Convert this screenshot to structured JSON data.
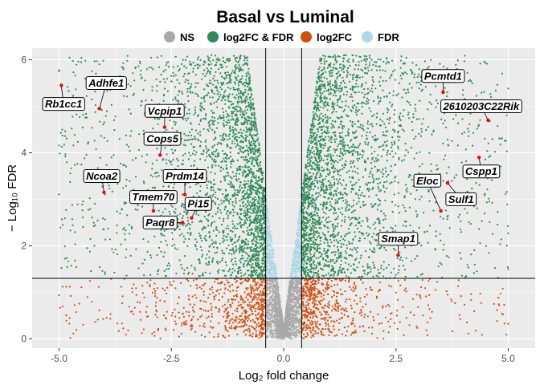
{
  "chart_data": {
    "type": "scatter",
    "title": "Basal vs Luminal",
    "xlabel": "Log₂ fold change",
    "ylabel": "− Log₁₀ FDR",
    "xlim": [
      -5.6,
      5.6
    ],
    "ylim": [
      -0.2,
      6.25
    ],
    "x_ticks": [
      -5.0,
      -2.5,
      0.0,
      2.5,
      5.0
    ],
    "x_tick_labels": [
      "-5.0",
      "-2.5",
      "0.0",
      "2.5",
      "5.0"
    ],
    "y_ticks": [
      0,
      2,
      4,
      6
    ],
    "y_tick_labels": [
      "0",
      "2",
      "4",
      "6"
    ],
    "grid": true,
    "legend_position": "top",
    "fc_cutoff": 0.4,
    "fdr_cutoff": 1.3,
    "legend": [
      {
        "name": "NS",
        "color": "#a9a9a9"
      },
      {
        "name": "log2FC & FDR",
        "color": "#2e8b57"
      },
      {
        "name": "log2FC",
        "color": "#d2500f"
      },
      {
        "name": "FDR",
        "color": "#add8e6"
      }
    ],
    "labeled_genes": [
      {
        "gene": "Rb1cc1",
        "x": -4.95,
        "y": 5.45
      },
      {
        "gene": "Adhfe1",
        "x": -4.1,
        "y": 4.95
      },
      {
        "gene": "Vcpip1",
        "x": -2.65,
        "y": 4.55
      },
      {
        "gene": "Cops5",
        "x": -2.75,
        "y": 3.95
      },
      {
        "gene": "Ncoa2",
        "x": -4.0,
        "y": 3.15
      },
      {
        "gene": "Prdm14",
        "x": -2.2,
        "y": 3.1
      },
      {
        "gene": "Tmem70",
        "x": -2.9,
        "y": 2.75
      },
      {
        "gene": "Pi15",
        "x": -2.05,
        "y": 2.6
      },
      {
        "gene": "Paqr8",
        "x": -2.25,
        "y": 2.5
      },
      {
        "gene": "Pcmtd1",
        "x": 3.55,
        "y": 5.3
      },
      {
        "gene": "2610203C22Rik",
        "x": 4.55,
        "y": 4.7
      },
      {
        "gene": "Cspp1",
        "x": 4.35,
        "y": 3.9
      },
      {
        "gene": "Eloc",
        "x": 3.5,
        "y": 2.75
      },
      {
        "gene": "Sulf1",
        "x": 3.65,
        "y": 3.35
      },
      {
        "gene": "Smap1",
        "x": 2.55,
        "y": 1.8
      }
    ],
    "label_positions": [
      {
        "gene": "Rb1cc1",
        "x": -4.9,
        "y": 5.05
      },
      {
        "gene": "Adhfe1",
        "x": -3.95,
        "y": 5.5
      },
      {
        "gene": "Vcpip1",
        "x": -2.65,
        "y": 4.9
      },
      {
        "gene": "Cops5",
        "x": -2.7,
        "y": 4.3
      },
      {
        "gene": "Ncoa2",
        "x": -4.05,
        "y": 3.5
      },
      {
        "gene": "Prdm14",
        "x": -2.2,
        "y": 3.5
      },
      {
        "gene": "Tmem70",
        "x": -2.9,
        "y": 3.05
      },
      {
        "gene": "Pi15",
        "x": -1.9,
        "y": 2.9
      },
      {
        "gene": "Paqr8",
        "x": -2.75,
        "y": 2.5
      },
      {
        "gene": "Pcmtd1",
        "x": 3.55,
        "y": 5.65
      },
      {
        "gene": "2610203C22Rik",
        "x": 4.4,
        "y": 5.0
      },
      {
        "gene": "Cspp1",
        "x": 4.4,
        "y": 3.6
      },
      {
        "gene": "Eloc",
        "x": 3.2,
        "y": 3.4
      },
      {
        "gene": "Sulf1",
        "x": 3.95,
        "y": 3.0
      },
      {
        "gene": "Smap1",
        "x": 2.55,
        "y": 2.15
      }
    ]
  }
}
